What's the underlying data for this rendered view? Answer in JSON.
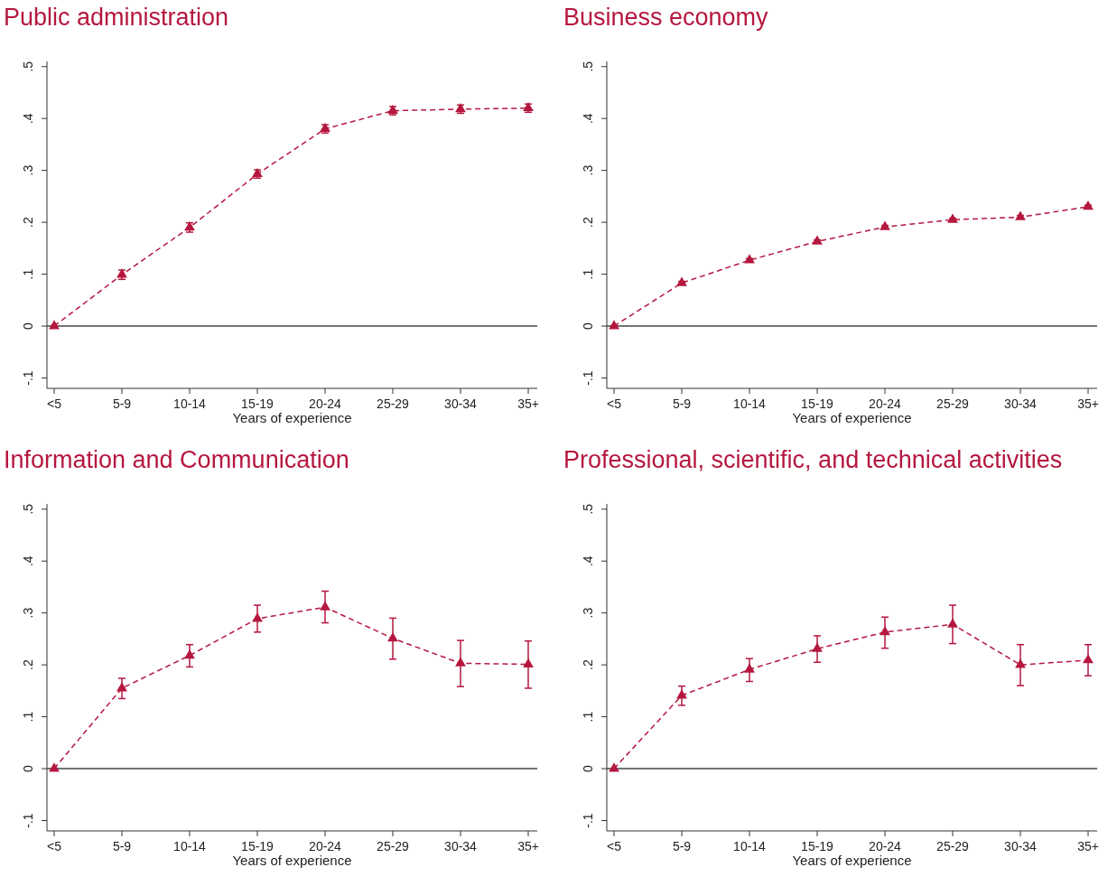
{
  "chart_data": [
    {
      "type": "line",
      "title": "Public administration",
      "xlabel": "Years of experience",
      "categories": [
        "<5",
        "5-9",
        "10-14",
        "15-19",
        "20-24",
        "25-29",
        "30-34",
        "35+"
      ],
      "series": [
        {
          "color": "#b5173f",
          "values": [
            0,
            0.099,
            0.19,
            0.293,
            0.38,
            0.415,
            0.418,
            0.42
          ],
          "errors": [
            null,
            0.009,
            0.009,
            0.008,
            0.008,
            0.008,
            0.008,
            0.008
          ]
        }
      ],
      "ylim": [
        -0.12,
        0.51
      ],
      "yticks": [
        {
          "value": -0.1,
          "label": "-.1"
        },
        {
          "value": 0,
          "label": "0"
        },
        {
          "value": 0.1,
          "label": ".1"
        },
        {
          "value": 0.2,
          "label": ".2"
        },
        {
          "value": 0.3,
          "label": ".3"
        },
        {
          "value": 0.4,
          "label": ".4"
        },
        {
          "value": 0.5,
          "label": ".5"
        }
      ],
      "ref_lines": [
        {
          "axis": "y",
          "value": 0,
          "color": "#444444"
        }
      ],
      "marker": "triangle",
      "line_style": "dashed",
      "grid": false
    },
    {
      "type": "line",
      "title": "Business economy",
      "xlabel": "Years of experience",
      "categories": [
        "<5",
        "5-9",
        "10-14",
        "15-19",
        "20-24",
        "25-29",
        "30-34",
        "35+"
      ],
      "series": [
        {
          "color": "#b5173f",
          "values": [
            0,
            0.083,
            0.127,
            0.163,
            0.191,
            0.205,
            0.21,
            0.23
          ],
          "errors": [
            null,
            0.003,
            0.003,
            0.003,
            0.003,
            0.003,
            0.003,
            0.003
          ]
        }
      ],
      "ylim": [
        -0.12,
        0.51
      ],
      "yticks": [
        {
          "value": -0.1,
          "label": "-.1"
        },
        {
          "value": 0,
          "label": "0"
        },
        {
          "value": 0.1,
          "label": ".1"
        },
        {
          "value": 0.2,
          "label": ".2"
        },
        {
          "value": 0.3,
          "label": ".3"
        },
        {
          "value": 0.4,
          "label": ".4"
        },
        {
          "value": 0.5,
          "label": ".5"
        }
      ],
      "ref_lines": [
        {
          "axis": "y",
          "value": 0,
          "color": "#444444"
        }
      ],
      "marker": "triangle",
      "line_style": "dashed",
      "grid": false
    },
    {
      "type": "line",
      "title": "Information and Communication",
      "xlabel": "Years of experience",
      "categories": [
        "<5",
        "5-9",
        "10-14",
        "15-19",
        "20-24",
        "25-29",
        "30-34",
        "35+"
      ],
      "series": [
        {
          "color": "#b5173f",
          "values": [
            0,
            0.155,
            0.218,
            0.289,
            0.311,
            0.251,
            0.203,
            0.201
          ],
          "errors": [
            null,
            [
              0.135,
              0.174
            ],
            [
              0.196,
              0.239
            ],
            [
              0.263,
              0.315
            ],
            [
              0.281,
              0.342
            ],
            [
              0.211,
              0.29
            ],
            [
              0.158,
              0.247
            ],
            [
              0.155,
              0.246
            ]
          ]
        }
      ],
      "ylim": [
        -0.12,
        0.51
      ],
      "yticks": [
        {
          "value": -0.1,
          "label": "-.1"
        },
        {
          "value": 0,
          "label": "0"
        },
        {
          "value": 0.1,
          "label": ".1"
        },
        {
          "value": 0.2,
          "label": ".2"
        },
        {
          "value": 0.3,
          "label": ".3"
        },
        {
          "value": 0.4,
          "label": ".4"
        },
        {
          "value": 0.5,
          "label": ".5"
        }
      ],
      "ref_lines": [
        {
          "axis": "y",
          "value": 0,
          "color": "#444444"
        }
      ],
      "marker": "triangle",
      "line_style": "dashed",
      "grid": false
    },
    {
      "type": "line",
      "title": "Professional, scientific, and technical activities",
      "xlabel": "Years of experience",
      "categories": [
        "<5",
        "5-9",
        "10-14",
        "15-19",
        "20-24",
        "25-29",
        "30-34",
        "35+"
      ],
      "series": [
        {
          "color": "#b5173f",
          "values": [
            0,
            0.141,
            0.191,
            0.231,
            0.263,
            0.278,
            0.2,
            0.209
          ],
          "errors": [
            null,
            [
              0.122,
              0.159
            ],
            [
              0.168,
              0.212
            ],
            [
              0.205,
              0.256
            ],
            [
              0.232,
              0.292
            ],
            [
              0.241,
              0.315
            ],
            [
              0.16,
              0.239
            ],
            [
              0.179,
              0.239
            ]
          ]
        }
      ],
      "ylim": [
        -0.12,
        0.51
      ],
      "yticks": [
        {
          "value": -0.1,
          "label": "-.1"
        },
        {
          "value": 0,
          "label": "0"
        },
        {
          "value": 0.1,
          "label": ".1"
        },
        {
          "value": 0.2,
          "label": ".2"
        },
        {
          "value": 0.3,
          "label": ".3"
        },
        {
          "value": 0.4,
          "label": ".4"
        },
        {
          "value": 0.5,
          "label": ".5"
        }
      ],
      "ref_lines": [
        {
          "axis": "y",
          "value": 0,
          "color": "#444444"
        }
      ],
      "marker": "triangle",
      "line_style": "dashed",
      "grid": false
    }
  ]
}
